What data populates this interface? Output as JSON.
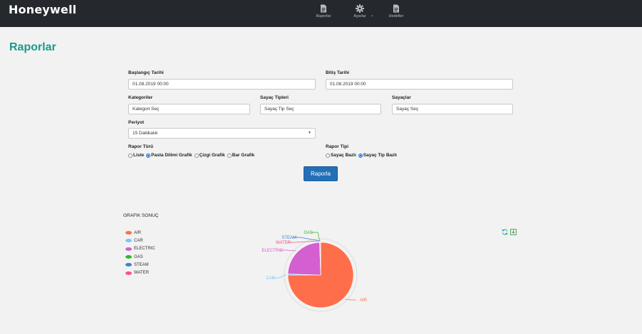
{
  "header": {
    "logo": "Honeywell",
    "nav": [
      {
        "label": "Raporlar",
        "icon": "document-icon"
      },
      {
        "label": "Ayarlar",
        "icon": "gear-icon"
      },
      {
        "label": "Hedefler",
        "icon": "document-icon"
      }
    ]
  },
  "page": {
    "title": "Raporlar"
  },
  "form": {
    "start_date": {
      "label": "Başlangıç Tarihi",
      "value": "01.08.2019 00:00"
    },
    "end_date": {
      "label": "Bitiş Tarihi",
      "value": "01.08.2019 00:00"
    },
    "categories": {
      "label": "Kategoriler",
      "value": "Kategori Seç"
    },
    "meter_types": {
      "label": "Sayaç Tipleri",
      "value": "Sayaç Tip Seç"
    },
    "meters": {
      "label": "Sayaçlar",
      "value": "Sayaç Seç"
    },
    "period": {
      "label": "Periyot",
      "value": "15 Dakikalık"
    },
    "report_kind": {
      "label": "Rapor Türü",
      "options": [
        "Liste",
        "Pasta Dilimi Grafik",
        "Çizgi Grafik",
        "Bar Grafik"
      ],
      "selected": "Pasta Dilimi Grafik"
    },
    "report_type": {
      "label": "Rapor Tipi",
      "options": [
        "Sayaç Bazlı",
        "Sayaç Tip Bazlı"
      ],
      "selected": "Sayaç Tip Bazlı"
    },
    "submit_label": "Raporla"
  },
  "result": {
    "title": "GRAFIK SONUÇ",
    "legend": [
      {
        "name": "AIR",
        "color": "#ff6e4a"
      },
      {
        "name": "CAR",
        "color": "#7cc6f0"
      },
      {
        "name": "ELECTRIC",
        "color": "#d45fd0"
      },
      {
        "name": "GAS",
        "color": "#2fb82f"
      },
      {
        "name": "STEAM",
        "color": "#3f7fd8"
      },
      {
        "name": "WATER",
        "color": "#f0568f"
      }
    ],
    "tools": [
      "refresh-icon",
      "download-icon"
    ]
  },
  "chart_data": {
    "type": "pie",
    "categories": [
      "AIR",
      "CAR",
      "ELECTRIC",
      "GAS",
      "STEAM",
      "WATER"
    ],
    "values": [
      75,
      0.5,
      24,
      0.1,
      0.1,
      0.3
    ],
    "colors": [
      "#ff6e4a",
      "#7cc6f0",
      "#d45fd0",
      "#2fb82f",
      "#3f7fd8",
      "#f0568f"
    ],
    "legend": "left"
  }
}
